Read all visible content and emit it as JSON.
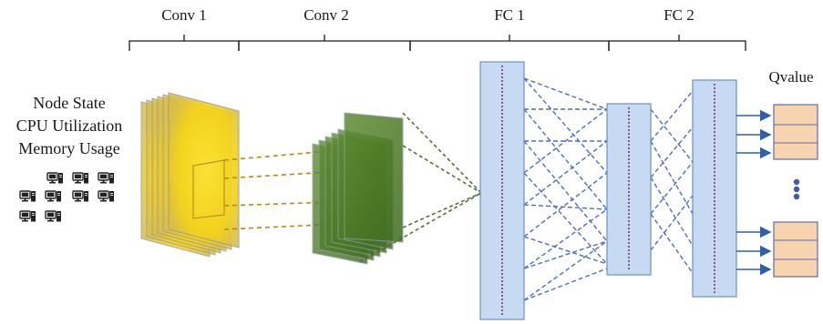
{
  "section_labels": {
    "conv1": "Conv 1",
    "conv2": "Conv 2",
    "fc1": "FC 1",
    "fc2": "FC 2"
  },
  "input_labels": {
    "line1": "Node State",
    "line2": "CPU Utilization",
    "line3": "Memory Usage"
  },
  "output_label": "Qvalue",
  "colors": {
    "conv1_fill": "#f5d21a",
    "conv1_outline": "#9a9a9a",
    "conv2_fill": "#4e7a26",
    "conv2_outline": "#8a9aa0",
    "fc_fill": "#c6dbf3",
    "fc_border": "#6e8fbf",
    "fc_center_line": "#7a2a5a",
    "connection_blue": "#4b6fbf",
    "connection_gold": "#b08a1a",
    "connection_green": "#4d6a2a",
    "output_fill": "#f7d3b0",
    "output_border": "#5b6fa8",
    "arrow": "#2e5fa8",
    "dots": "#3b5ea8"
  },
  "icons": {
    "computer": "desktop-computer-icon",
    "computer_count": 11
  }
}
